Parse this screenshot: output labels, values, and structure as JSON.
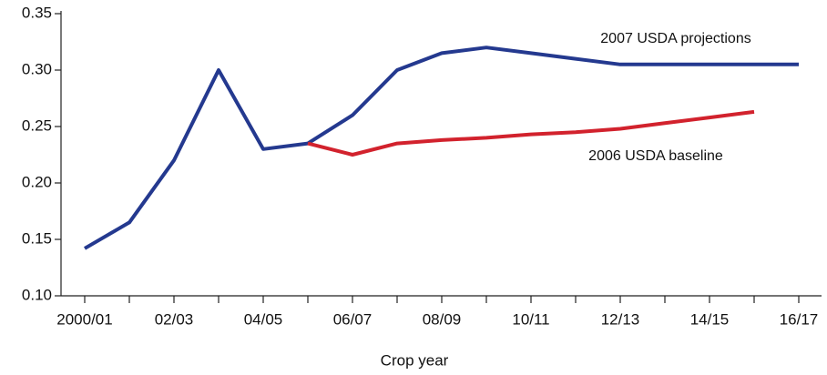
{
  "chart_data": {
    "type": "line",
    "x_label": "Crop year",
    "categories": [
      "2000/01",
      null,
      "02/03",
      null,
      "04/05",
      null,
      "06/07",
      null,
      "08/09",
      null,
      "10/11",
      null,
      "12/13",
      null,
      "14/15",
      null,
      "16/17"
    ],
    "series": [
      {
        "name": "2007 USDA projections",
        "color": "#24398f",
        "values": [
          0.142,
          0.165,
          0.22,
          0.3,
          0.23,
          0.235,
          0.26,
          0.3,
          0.315,
          0.32,
          0.315,
          0.31,
          0.305,
          0.305,
          0.305,
          0.305,
          0.305
        ]
      },
      {
        "name": "2006 USDA baseline",
        "color": "#d2222d",
        "values": [
          null,
          null,
          null,
          null,
          null,
          0.235,
          0.225,
          0.235,
          0.238,
          0.24,
          0.243,
          0.245,
          0.248,
          0.253,
          0.258,
          0.263,
          null
        ]
      }
    ],
    "ylim": [
      0.1,
      0.35
    ],
    "yticks": [
      {
        "value": 0.1,
        "label": "0.10"
      },
      0.15,
      {
        "value": 0.2,
        "label": "0.20"
      },
      0.25,
      {
        "value": 0.3,
        "label": "0.30"
      },
      0.35
    ],
    "grid": false
  }
}
